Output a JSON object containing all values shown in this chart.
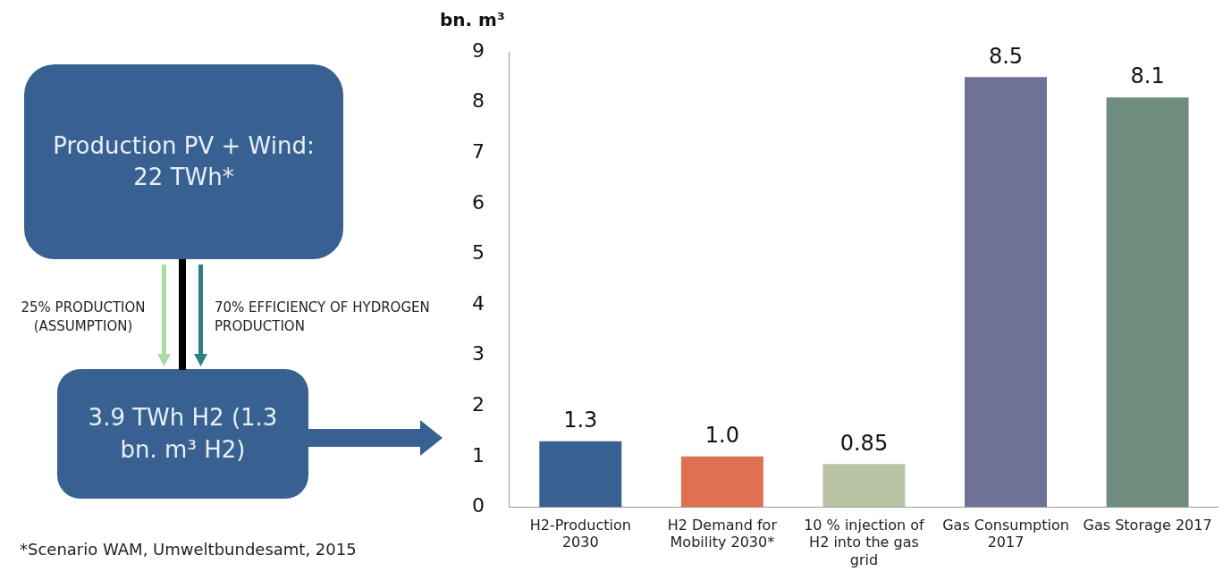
{
  "chart_data": {
    "type": "bar",
    "ylabel": "bn. m³",
    "categories": [
      "H2-Production 2030",
      "H2 Demand for Mobility 2030*",
      "10 % injection of H2 into the gas grid",
      "Gas Consumption 2017",
      "Gas Storage 2017"
    ],
    "values": [
      1.3,
      1.0,
      0.85,
      8.5,
      8.1
    ],
    "value_labels": [
      "1.3",
      "1.0",
      "0.85",
      "8.5",
      "8.1"
    ],
    "colors": [
      "#386192",
      "#e07052",
      "#b8c4a4",
      "#6f7197",
      "#6f8c7e"
    ],
    "ylim": [
      0,
      9
    ],
    "yticks": [
      0,
      1,
      2,
      3,
      4,
      5,
      6,
      7,
      8,
      9
    ],
    "grid": false,
    "legend": false,
    "annotations": [
      "Production PV + Wind: 22 TWh*",
      "25% PRODUCTION (ASSUMPTION)",
      "70% EFFICIENCY OF HYDROGEN PRODUCTION",
      "3.9 TWh H2 (1.3 bn. m³ H2)",
      "*Scenario WAM, Umweltbundesamt, 2015"
    ]
  }
}
